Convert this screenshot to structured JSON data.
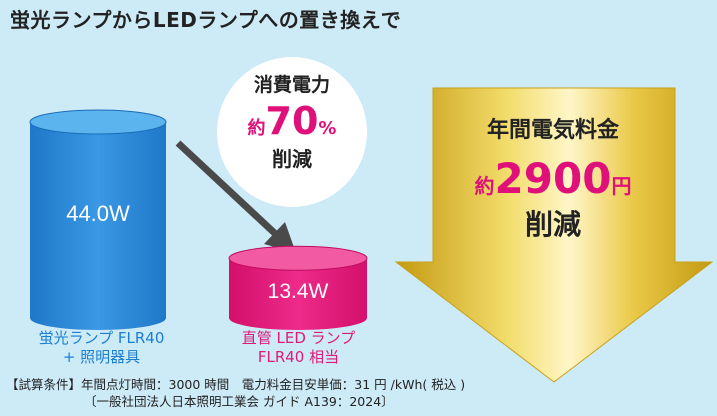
{
  "title": "蛍光ランプからLEDランプへの置き換えで",
  "chart_data": {
    "type": "bar",
    "categories": [
      "蛍光ランプ FLR40 + 照明器具",
      "直管 LED ランプ FLR40 相当"
    ],
    "values": [
      44.0,
      13.4
    ],
    "value_labels": [
      "44.0W",
      "13.4W"
    ],
    "unit": "W",
    "colors": [
      "#2a8ad8",
      "#e8197c"
    ]
  },
  "labels": {
    "fluorescent_line1": "蛍光ランプ FLR40",
    "fluorescent_line2": "+ 照明器具",
    "led_line1": "直管 LED ランプ",
    "led_line2": "FLR40 相当"
  },
  "bubble": {
    "line1": "消費電力",
    "prefix": "約",
    "percent": "70",
    "unit": "%",
    "line3": "削減"
  },
  "savings": {
    "line1": "年間電気料金",
    "prefix": "約",
    "amount": "2900",
    "unit": "円",
    "line3": "削減"
  },
  "footnote": {
    "line1": "【試算条件】年間点灯時間：3000 時間　電力料金目安単価：31 円 /kWh( 税込 )",
    "line2": "〔一般社団法人日本照明工業会 ガイド A139：2024〕"
  },
  "colors": {
    "background": "#cdeaf7",
    "blue": "#2a8ad8",
    "pink": "#e8197c",
    "gold": "#d8b020"
  }
}
